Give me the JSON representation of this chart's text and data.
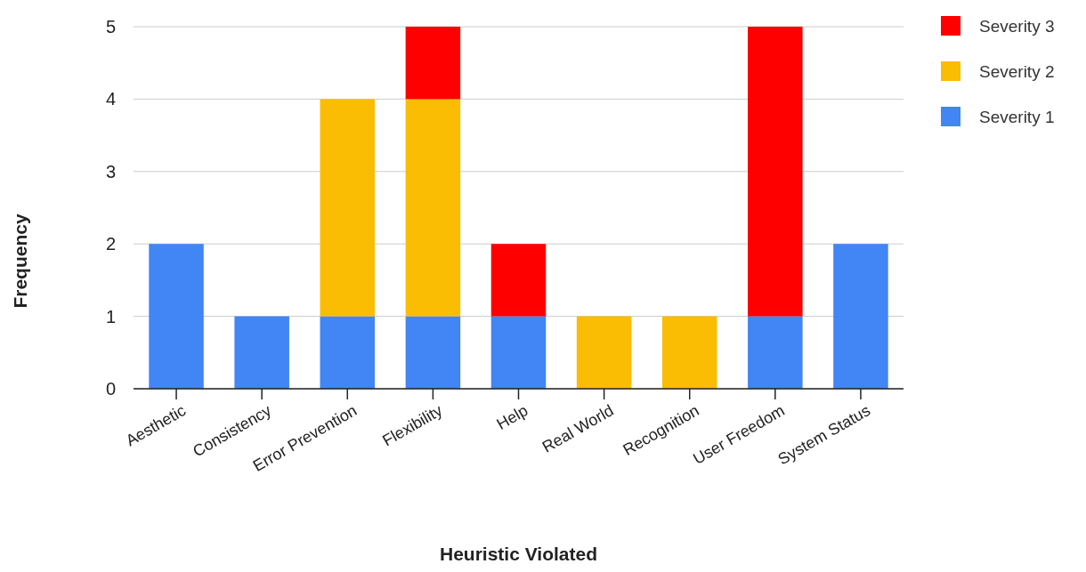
{
  "chart_data": {
    "type": "bar",
    "stacked": true,
    "xlabel": "Heuristic Violated",
    "ylabel": "Frequency",
    "categories": [
      "Aesthetic",
      "Consistency",
      "Error Prevention",
      "Flexibility",
      "Help",
      "Real World",
      "Recognition",
      "User Freedom",
      "System Status"
    ],
    "series": [
      {
        "name": "Severity 1",
        "color": "#4285f4",
        "values": [
          2,
          1,
          1,
          1,
          1,
          0,
          0,
          1,
          2
        ]
      },
      {
        "name": "Severity 2",
        "color": "#fbbc04",
        "values": [
          0,
          0,
          3,
          3,
          0,
          1,
          1,
          0,
          0
        ]
      },
      {
        "name": "Severity 3",
        "color": "#ff0000",
        "values": [
          0,
          0,
          0,
          1,
          1,
          0,
          0,
          4,
          0
        ]
      }
    ],
    "ylim": [
      0,
      5
    ],
    "yticks": [
      0,
      1,
      2,
      3,
      4,
      5
    ],
    "grid": "y",
    "legend": "top right"
  }
}
